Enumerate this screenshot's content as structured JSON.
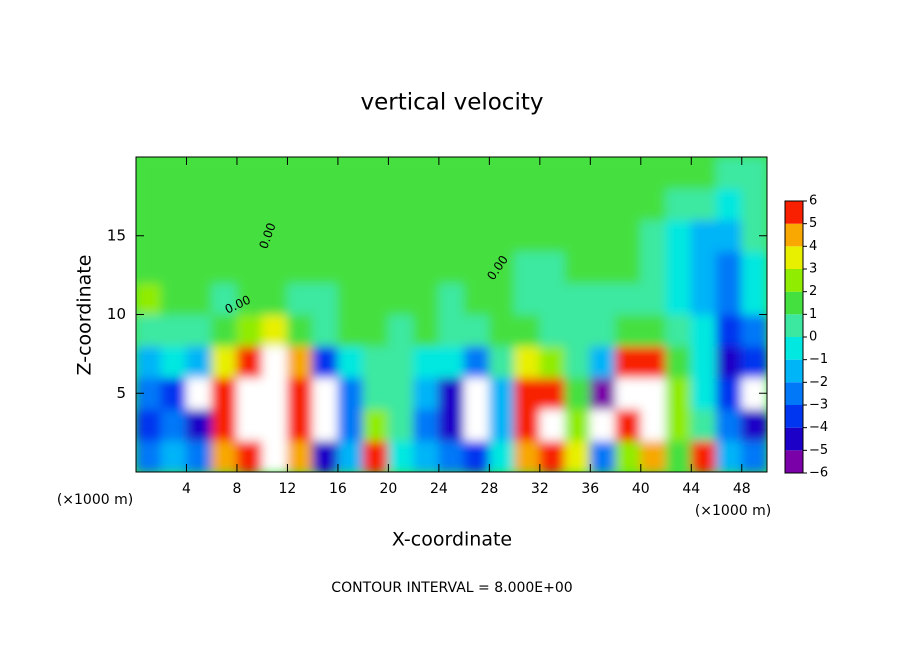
{
  "chart_data": {
    "type": "contourf",
    "title": "vertical velocity",
    "xlabel": "X-coordinate",
    "ylabel": "Z-coordinate",
    "x_unit": "(×1000 m)",
    "y_unit": "(×1000 m)",
    "footer": "CONTOUR INTERVAL = 8.000E+00",
    "contour_labels": [
      "0.00",
      "0.00",
      "0.00"
    ],
    "xlim": [
      0,
      50
    ],
    "ylim": [
      0,
      20
    ],
    "xticks": [
      4,
      8,
      12,
      16,
      20,
      24,
      28,
      32,
      36,
      40,
      44,
      48
    ],
    "yticks": [
      5,
      10,
      15
    ],
    "x": [
      1,
      3,
      5,
      7,
      9,
      11,
      13,
      15,
      17,
      19,
      21,
      23,
      25,
      27,
      29,
      31,
      33,
      35,
      37,
      39,
      41,
      43,
      45,
      47,
      49
    ],
    "y": [
      1,
      3,
      5,
      7,
      9,
      11,
      13,
      15,
      17,
      19
    ],
    "z": [
      [
        -3,
        -2,
        -3,
        4,
        6,
        7,
        4,
        -5,
        -2,
        6,
        -1,
        -2,
        -3,
        -4,
        -1,
        4,
        6,
        3,
        -3,
        2,
        4,
        1,
        5,
        -2,
        -3
      ],
      [
        -4,
        -3,
        -5,
        5,
        8,
        9,
        5,
        -7,
        -3,
        2,
        0,
        -3,
        -5,
        -7,
        -2,
        6,
        8,
        2,
        -7,
        6,
        7,
        2,
        0,
        -3,
        -5
      ],
      [
        -3,
        -4,
        -7,
        5,
        8,
        9,
        5,
        -7,
        -3,
        0,
        0,
        -2,
        -5,
        -7,
        -2,
        6,
        6,
        1,
        -6,
        8,
        8,
        2,
        -1,
        -4,
        -7
      ],
      [
        -2,
        -1,
        -2,
        3,
        6,
        7,
        4,
        -4,
        -1,
        0,
        0,
        -1,
        -1,
        -3,
        0,
        3,
        2,
        0,
        -2,
        6,
        5,
        1,
        -1,
        -5,
        -4
      ],
      [
        0,
        0,
        0,
        1,
        2,
        3,
        1,
        0,
        1,
        1,
        0,
        1,
        0,
        0,
        1,
        1,
        0,
        0,
        0,
        1,
        1,
        0,
        -1,
        -4,
        -3
      ],
      [
        2,
        1,
        1,
        0,
        1,
        1,
        0,
        0,
        1,
        1,
        1,
        1,
        0,
        1,
        1,
        0,
        0,
        0,
        0,
        0,
        0,
        -1,
        -2,
        -3,
        -1
      ],
      [
        1,
        1,
        1,
        1,
        1,
        1,
        1,
        1,
        1,
        1,
        1,
        1,
        1,
        1,
        1,
        0,
        0,
        1,
        1,
        1,
        0,
        -1,
        -2,
        -3,
        -1
      ],
      [
        1,
        1,
        1,
        1,
        1,
        1,
        1,
        1,
        1,
        1,
        1,
        1,
        1,
        1,
        1,
        1,
        1,
        1,
        1,
        1,
        0,
        -1,
        -2,
        -2,
        0
      ],
      [
        1,
        1,
        1,
        1,
        1,
        1,
        1,
        1,
        1,
        1,
        1,
        1,
        1,
        1,
        1,
        1,
        1,
        1,
        1,
        1,
        1,
        0,
        0,
        -1,
        0
      ],
      [
        1,
        1,
        1,
        1,
        1,
        1,
        1,
        1,
        1,
        1,
        1,
        1,
        1,
        1,
        1,
        1,
        1,
        1,
        1,
        1,
        1,
        1,
        1,
        0,
        0
      ]
    ],
    "colorbar_ticks": [
      {
        "value": -6,
        "label": "−6"
      },
      {
        "value": -5,
        "label": "−5"
      },
      {
        "value": -4,
        "label": "−4"
      },
      {
        "value": -3,
        "label": "−3"
      },
      {
        "value": -2,
        "label": "−2"
      },
      {
        "value": -1,
        "label": "−1"
      },
      0,
      1,
      2,
      3,
      4,
      5,
      6
    ],
    "colors": [
      "#7a00a8",
      "#1c00c8",
      "#0036f0",
      "#0078f8",
      "#00b4f8",
      "#00e8e0",
      "#3ce8a0",
      "#44e040",
      "#90ec00",
      "#e8f000",
      "#f8a800",
      "#f82000"
    ],
    "over_color": "#ffffff",
    "under_color": "#ffffff"
  }
}
